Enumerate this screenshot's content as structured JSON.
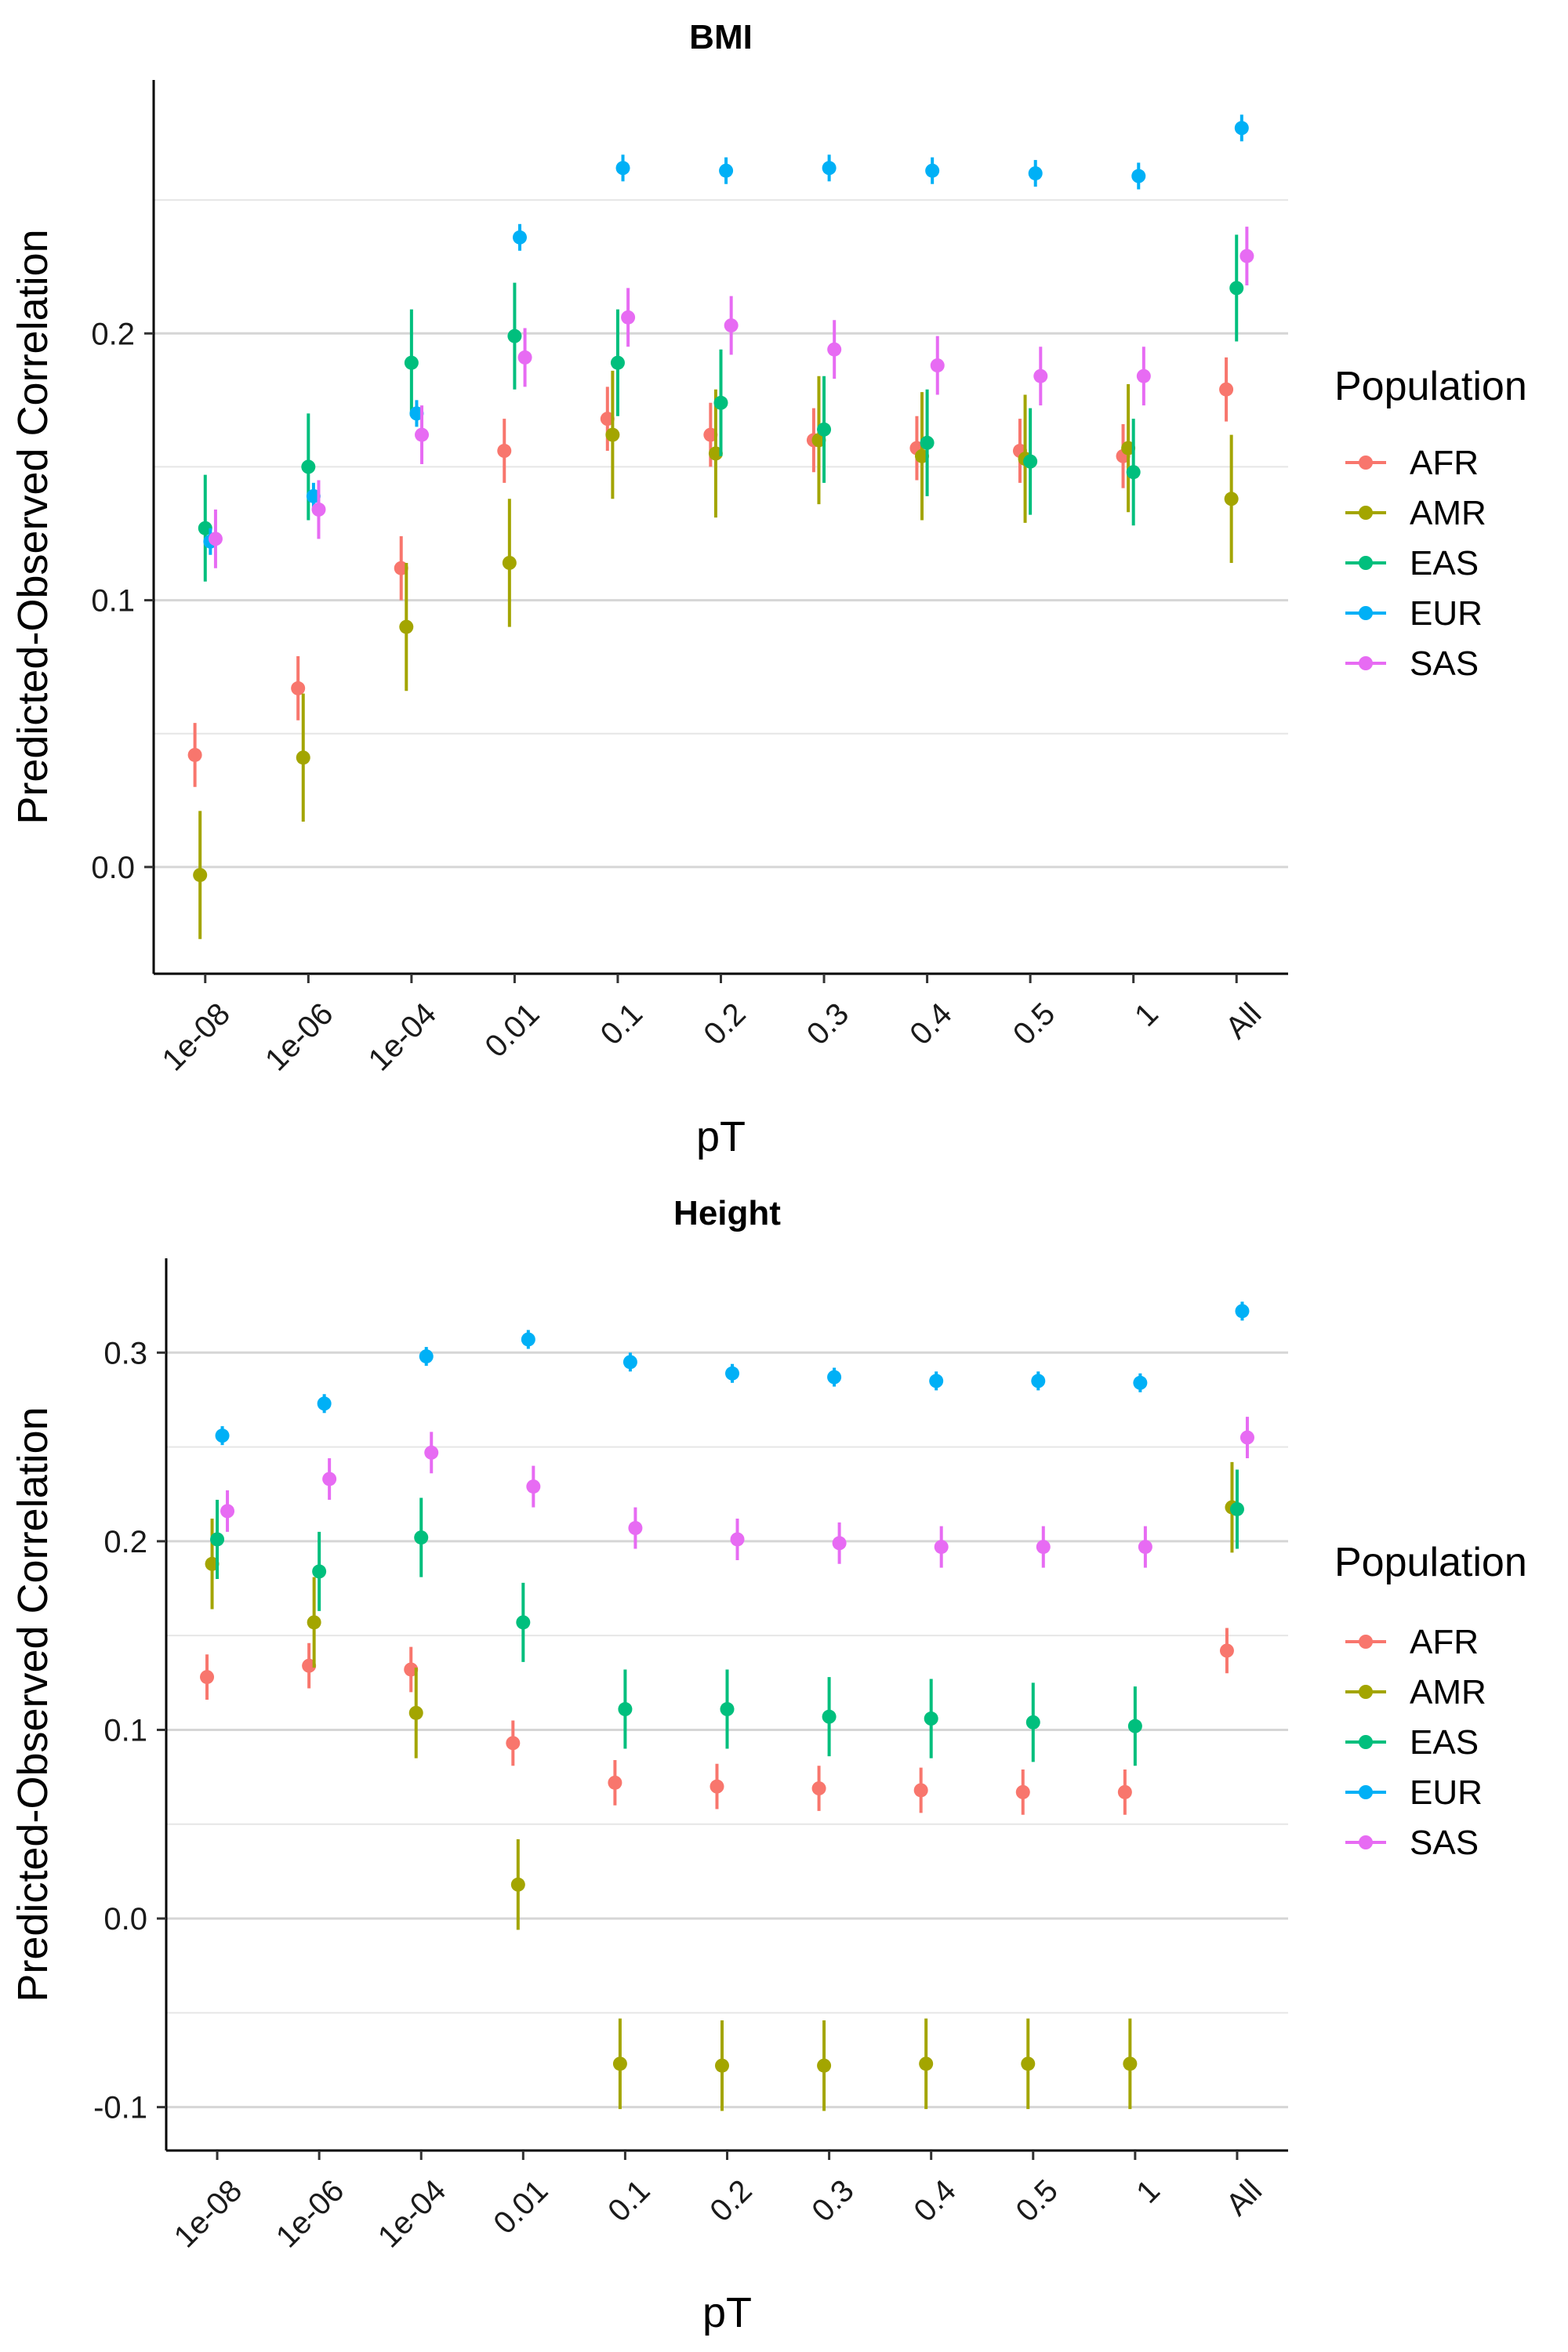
{
  "chart_data": [
    {
      "type": "scatter",
      "title": "BMI",
      "xlabel": "pT",
      "ylabel": "Predicted-Observed Correlation",
      "categories": [
        "1e-08",
        "1e-06",
        "1e-04",
        "0.01",
        "0.1",
        "0.2",
        "0.3",
        "0.4",
        "0.5",
        "1",
        "All"
      ],
      "ylim": [
        -0.04,
        0.295
      ],
      "yticks": [
        "0.0",
        "0.1",
        "0.2"
      ],
      "ytick_values": [
        0.0,
        0.1,
        0.2
      ],
      "minor_grid": [
        0.05,
        0.15,
        0.25
      ],
      "grid": true,
      "legend_title": "Population",
      "legend_position": "right",
      "series": [
        {
          "name": "AFR",
          "color": "#F8766D",
          "values": [
            0.042,
            0.067,
            0.112,
            0.156,
            0.168,
            0.162,
            0.16,
            0.157,
            0.156,
            0.154,
            0.179
          ],
          "err": [
            0.012,
            0.012,
            0.012,
            0.012,
            0.012,
            0.012,
            0.012,
            0.012,
            0.012,
            0.012,
            0.012
          ]
        },
        {
          "name": "AMR",
          "color": "#A3A500",
          "values": [
            -0.003,
            0.041,
            0.09,
            0.114,
            0.162,
            0.155,
            0.16,
            0.154,
            0.153,
            0.157,
            0.138
          ],
          "err": [
            0.024,
            0.024,
            0.024,
            0.024,
            0.024,
            0.024,
            0.024,
            0.024,
            0.024,
            0.024,
            0.024
          ]
        },
        {
          "name": "EAS",
          "color": "#00BF7D",
          "values": [
            0.127,
            0.15,
            0.189,
            0.199,
            0.189,
            0.174,
            0.164,
            0.159,
            0.152,
            0.148,
            0.217
          ],
          "err": [
            0.02,
            0.02,
            0.02,
            0.02,
            0.02,
            0.02,
            0.02,
            0.02,
            0.02,
            0.02,
            0.02
          ]
        },
        {
          "name": "EUR",
          "color": "#00B0F6",
          "values": [
            0.122,
            0.139,
            0.17,
            0.236,
            0.262,
            0.261,
            0.262,
            0.261,
            0.26,
            0.259,
            0.277
          ],
          "err": [
            0.005,
            0.005,
            0.005,
            0.005,
            0.005,
            0.005,
            0.005,
            0.005,
            0.005,
            0.005,
            0.005
          ]
        },
        {
          "name": "SAS",
          "color": "#E76BF3",
          "values": [
            0.123,
            0.134,
            0.162,
            0.191,
            0.206,
            0.203,
            0.194,
            0.188,
            0.184,
            0.184,
            0.229
          ],
          "err": [
            0.011,
            0.011,
            0.011,
            0.011,
            0.011,
            0.011,
            0.011,
            0.011,
            0.011,
            0.011,
            0.011
          ]
        }
      ]
    },
    {
      "type": "scatter",
      "title": "Height",
      "xlabel": "pT",
      "ylabel": "Predicted-Observed Correlation",
      "categories": [
        "1e-08",
        "1e-06",
        "1e-04",
        "0.01",
        "0.1",
        "0.2",
        "0.3",
        "0.4",
        "0.5",
        "1",
        "All"
      ],
      "ylim": [
        -0.123,
        0.35
      ],
      "yticks": [
        "-0.1",
        "0.0",
        "0.1",
        "0.2",
        "0.3"
      ],
      "ytick_values": [
        -0.1,
        0.0,
        0.1,
        0.2,
        0.3
      ],
      "minor_grid": [
        -0.05,
        0.05,
        0.15,
        0.25
      ],
      "grid": true,
      "legend_title": "Population",
      "legend_position": "right",
      "series": [
        {
          "name": "AFR",
          "color": "#F8766D",
          "values": [
            0.128,
            0.134,
            0.132,
            0.093,
            0.072,
            0.07,
            0.069,
            0.068,
            0.067,
            0.067,
            0.142
          ],
          "err": [
            0.012,
            0.012,
            0.012,
            0.012,
            0.012,
            0.012,
            0.012,
            0.012,
            0.012,
            0.012,
            0.012
          ]
        },
        {
          "name": "AMR",
          "color": "#A3A500",
          "values": [
            0.188,
            0.157,
            0.109,
            0.018,
            -0.077,
            -0.078,
            -0.078,
            -0.077,
            -0.077,
            -0.077,
            0.218
          ],
          "err": [
            0.024,
            0.024,
            0.024,
            0.024,
            0.024,
            0.024,
            0.024,
            0.024,
            0.024,
            0.024,
            0.024
          ]
        },
        {
          "name": "EAS",
          "color": "#00BF7D",
          "values": [
            0.201,
            0.184,
            0.202,
            0.157,
            0.111,
            0.111,
            0.107,
            0.106,
            0.104,
            0.102,
            0.217
          ],
          "err": [
            0.021,
            0.021,
            0.021,
            0.021,
            0.021,
            0.021,
            0.021,
            0.021,
            0.021,
            0.021,
            0.021
          ]
        },
        {
          "name": "EUR",
          "color": "#00B0F6",
          "values": [
            0.256,
            0.273,
            0.298,
            0.307,
            0.295,
            0.289,
            0.287,
            0.285,
            0.285,
            0.284,
            0.322
          ],
          "err": [
            0.005,
            0.005,
            0.005,
            0.005,
            0.005,
            0.005,
            0.005,
            0.005,
            0.005,
            0.005,
            0.005
          ]
        },
        {
          "name": "SAS",
          "color": "#E76BF3",
          "values": [
            0.216,
            0.233,
            0.247,
            0.229,
            0.207,
            0.201,
            0.199,
            0.197,
            0.197,
            0.197,
            0.255
          ],
          "err": [
            0.011,
            0.011,
            0.011,
            0.011,
            0.011,
            0.011,
            0.011,
            0.011,
            0.011,
            0.011,
            0.011
          ]
        }
      ]
    }
  ]
}
